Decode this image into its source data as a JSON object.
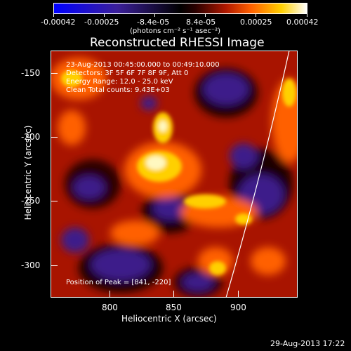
{
  "colorbar": {
    "ticks": [
      "-0.00042",
      "-0.00025",
      "-8.4e-05",
      "8.4e-05",
      "0.00025",
      "0.00042"
    ],
    "units": "(photons cm⁻² s⁻¹ asec⁻²)",
    "colors": [
      "#0000ff",
      "#3b1f9a",
      "#000000",
      "#2a0000",
      "#b01800",
      "#ff6000",
      "#ffd000",
      "#ffffff"
    ]
  },
  "plot": {
    "title": "Reconstructed RHESSI Image",
    "xlabel": "Heliocentric X (arcsec)",
    "ylabel": "Heliocentric Y (arcsec)",
    "xticks": [
      "800",
      "850",
      "900"
    ],
    "yticks": [
      "-150",
      "-200",
      "-250",
      "-300"
    ],
    "info": [
      "23-Aug-2013 00:45:00.000 to 00:49:10.000",
      "Detectors: 3F 5F 6F 7F 8F 9F, Att 0",
      "Energy Range: 12.0 - 25.0 keV",
      "Clean    Total counts: 9.43E+03"
    ],
    "peak": "Position of Peak = [841, -220]"
  },
  "footer": {
    "timestamp": "29-Aug-2013 17:22"
  }
}
